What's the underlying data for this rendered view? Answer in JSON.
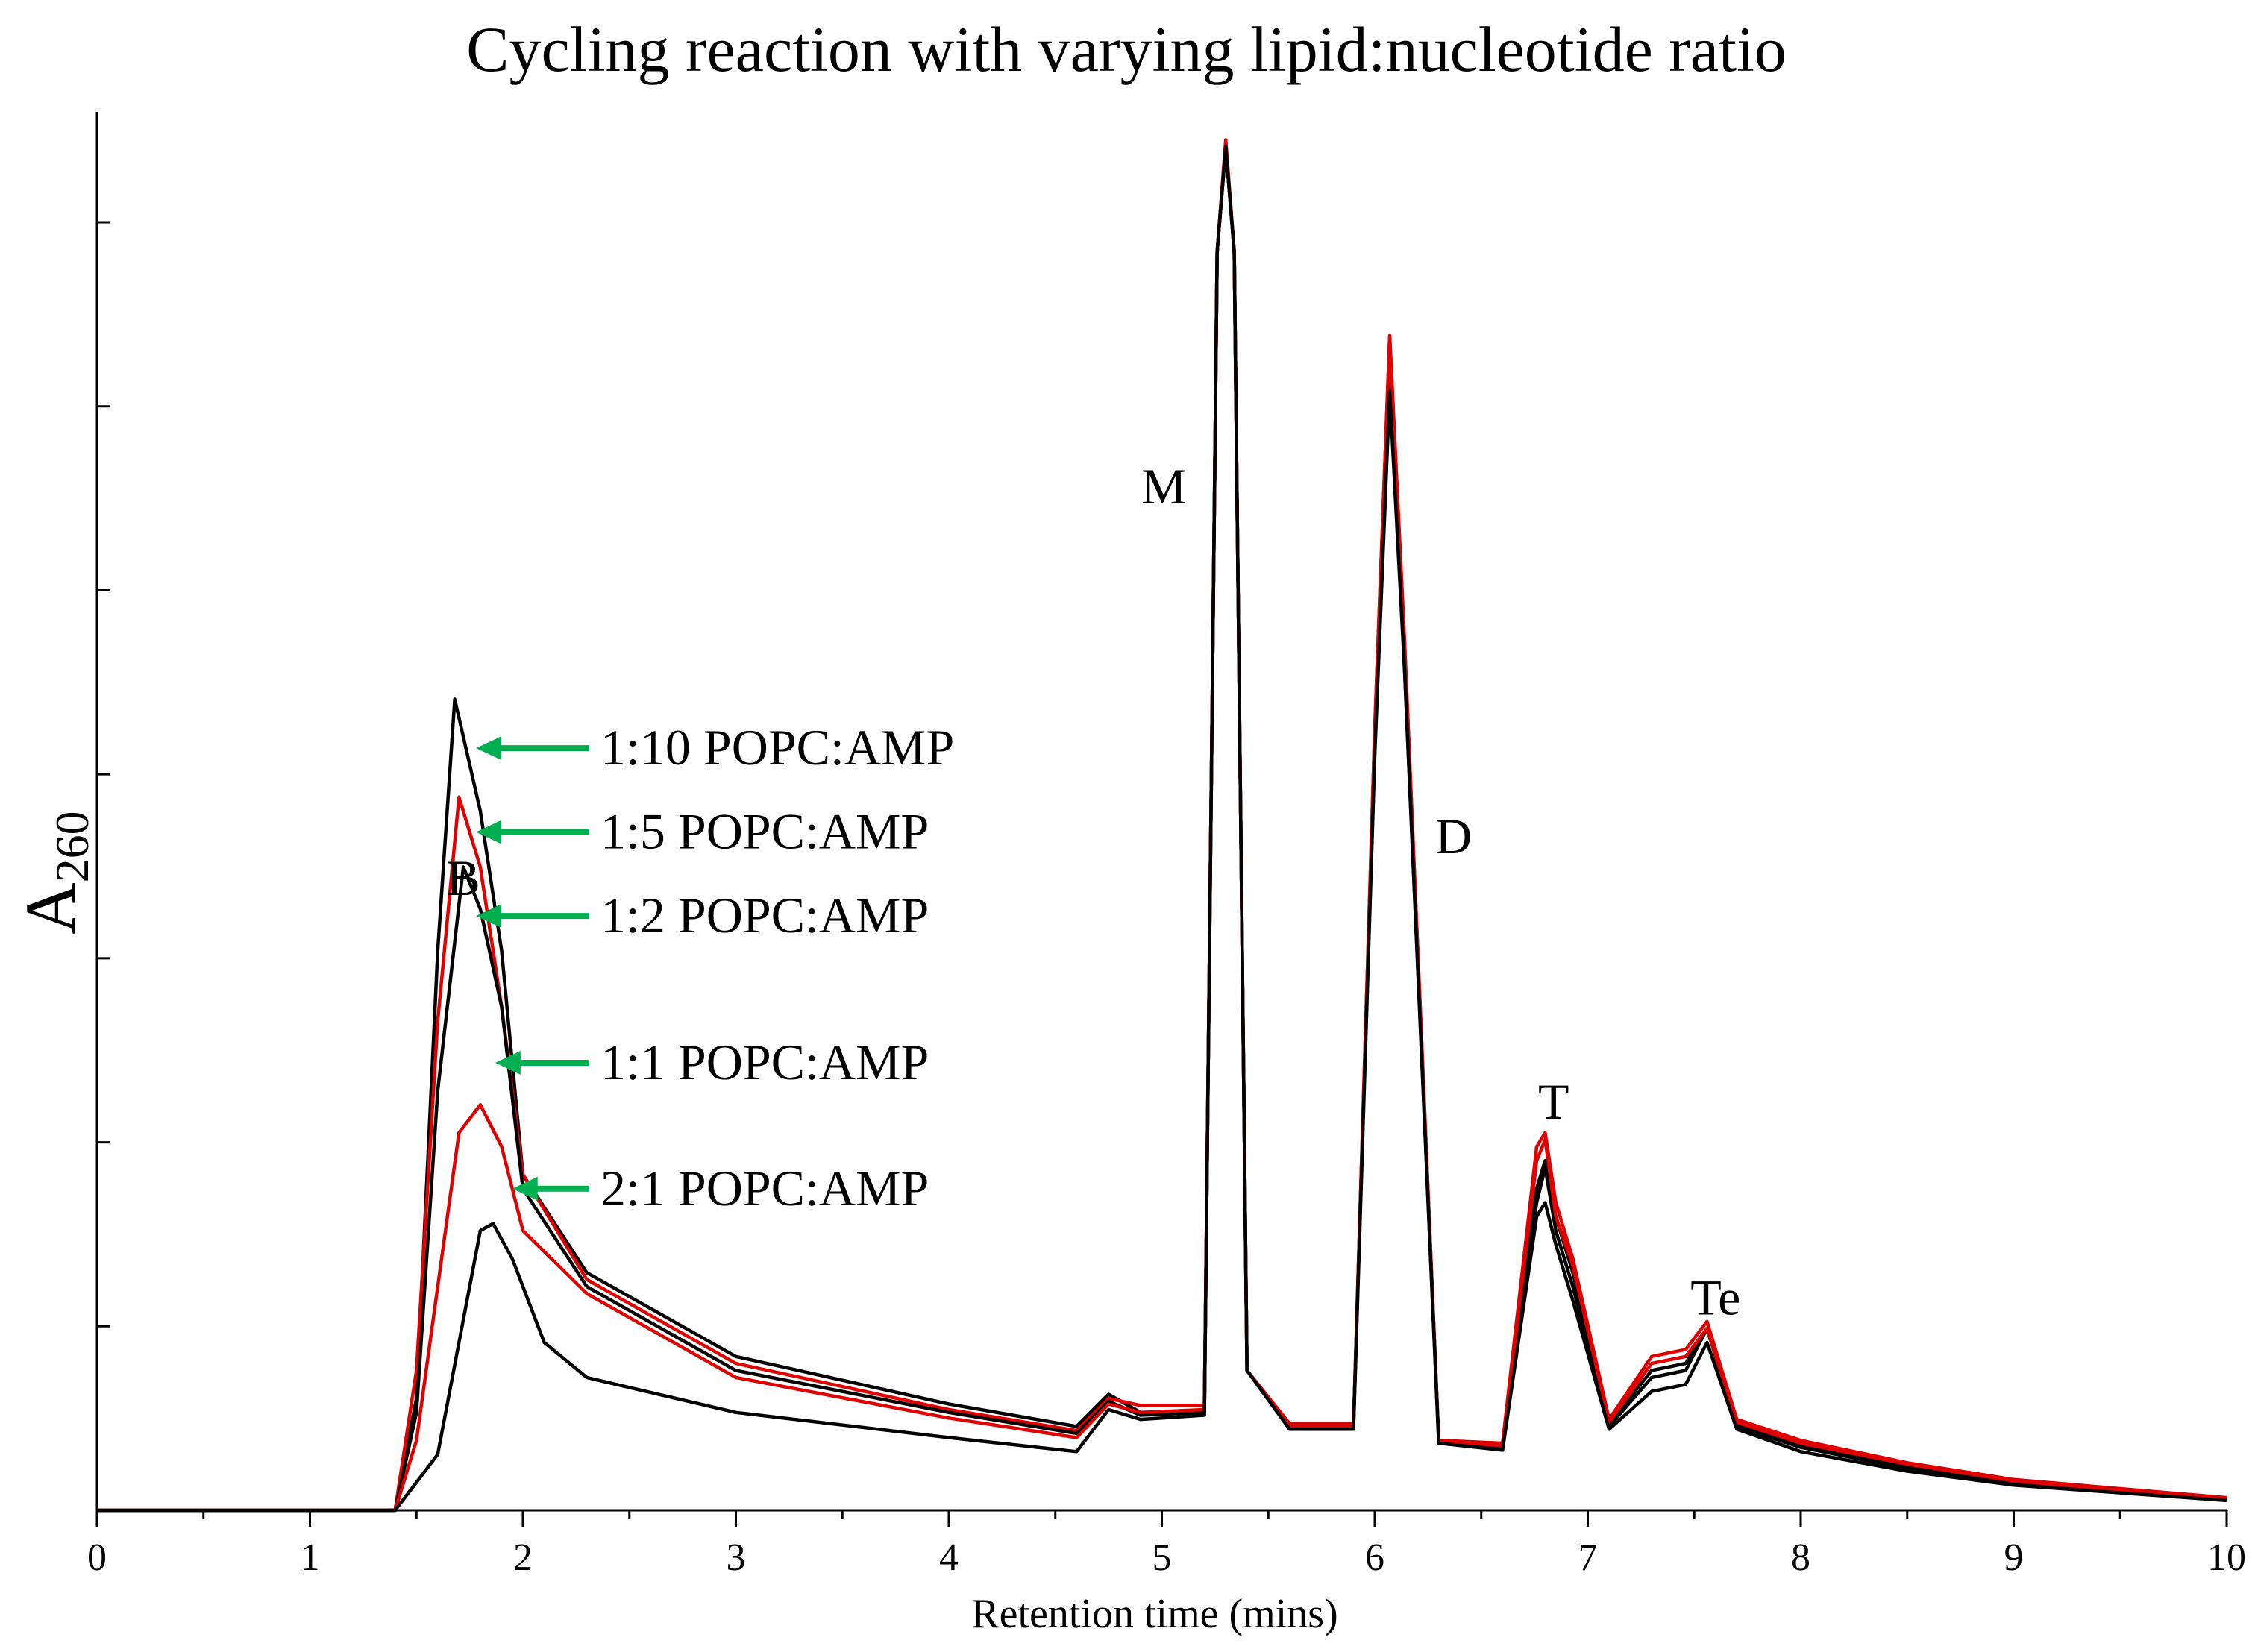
{
  "chart_data": {
    "type": "line",
    "title": "Cycling reaction with varying lipid:nucleotide ratio",
    "xlabel": "Retention time (mins)",
    "ylabel_main": "A",
    "ylabel_sub": "260",
    "xlim": [
      0,
      10
    ],
    "ylim": [
      0,
      1
    ],
    "x_ticks": [
      0,
      1,
      2,
      3,
      4,
      5,
      6,
      7,
      8,
      9,
      10
    ],
    "y_ticks_visible": false,
    "grid": false,
    "peak_labels": [
      {
        "text": "B",
        "x": 1.72,
        "y": 0.44
      },
      {
        "text": "M",
        "x": 5.01,
        "y": 0.72
      },
      {
        "text": "D",
        "x": 6.37,
        "y": 0.47
      },
      {
        "text": "T",
        "x": 6.84,
        "y": 0.28
      },
      {
        "text": "Te",
        "x": 7.6,
        "y": 0.14
      }
    ],
    "series": [
      {
        "name": "1:10 POPC:AMP",
        "color": "#000000",
        "x": [
          0,
          1.4,
          1.5,
          1.6,
          1.68,
          1.8,
          1.9,
          2.0,
          2.3,
          3.0,
          4.0,
          4.6,
          4.75,
          4.9,
          5.2,
          5.26,
          5.3,
          5.34,
          5.4,
          5.6,
          5.9,
          6.0,
          6.07,
          6.14,
          6.3,
          6.6,
          6.76,
          6.8,
          6.85,
          6.93,
          7.1,
          7.3,
          7.46,
          7.56,
          7.7,
          8.0,
          8.5,
          9.0,
          10.0
        ],
        "y": [
          0,
          0,
          0.08,
          0.4,
          0.58,
          0.5,
          0.4,
          0.24,
          0.17,
          0.11,
          0.076,
          0.06,
          0.083,
          0.07,
          0.07,
          0.9,
          0.975,
          0.9,
          0.1,
          0.06,
          0.06,
          0.55,
          0.82,
          0.6,
          0.05,
          0.045,
          0.22,
          0.245,
          0.2,
          0.16,
          0.06,
          0.095,
          0.1,
          0.13,
          0.06,
          0.045,
          0.03,
          0.02,
          0.008
        ]
      },
      {
        "name": "1:5 POPC:AMP",
        "color": "#e00000",
        "x": [
          0,
          1.4,
          1.5,
          1.6,
          1.7,
          1.8,
          1.9,
          2.0,
          2.3,
          3.0,
          4.0,
          4.6,
          4.75,
          4.9,
          5.2,
          5.26,
          5.3,
          5.34,
          5.4,
          5.6,
          5.9,
          6.0,
          6.07,
          6.14,
          6.3,
          6.6,
          6.76,
          6.8,
          6.85,
          6.93,
          7.1,
          7.3,
          7.46,
          7.56,
          7.7,
          8.0,
          8.5,
          9.0,
          10.0
        ],
        "y": [
          0,
          0,
          0.1,
          0.35,
          0.51,
          0.46,
          0.36,
          0.24,
          0.165,
          0.105,
          0.072,
          0.057,
          0.08,
          0.075,
          0.075,
          0.9,
          0.98,
          0.9,
          0.1,
          0.062,
          0.062,
          0.56,
          0.84,
          0.62,
          0.05,
          0.048,
          0.26,
          0.27,
          0.22,
          0.18,
          0.065,
          0.11,
          0.115,
          0.135,
          0.065,
          0.05,
          0.034,
          0.022,
          0.009
        ]
      },
      {
        "name": "1:2 POPC:AMP",
        "color": "#000000",
        "x": [
          0,
          1.4,
          1.5,
          1.6,
          1.72,
          1.8,
          1.9,
          2.0,
          2.3,
          3.0,
          4.0,
          4.6,
          4.75,
          4.9,
          5.2,
          5.26,
          5.3,
          5.34,
          5.4,
          5.6,
          5.9,
          6.0,
          6.07,
          6.14,
          6.3,
          6.6,
          6.76,
          6.8,
          6.85,
          6.93,
          7.1,
          7.3,
          7.46,
          7.56,
          7.7,
          8.0,
          8.5,
          9.0,
          10.0
        ],
        "y": [
          0,
          0,
          0.07,
          0.3,
          0.46,
          0.43,
          0.36,
          0.23,
          0.16,
          0.1,
          0.07,
          0.055,
          0.078,
          0.068,
          0.07,
          0.9,
          0.975,
          0.9,
          0.1,
          0.06,
          0.06,
          0.55,
          0.83,
          0.61,
          0.05,
          0.045,
          0.23,
          0.25,
          0.21,
          0.17,
          0.062,
          0.1,
          0.105,
          0.13,
          0.062,
          0.047,
          0.032,
          0.021,
          0.008
        ]
      },
      {
        "name": "1:1 POPC:AMP",
        "color": "#e00000",
        "x": [
          0,
          1.4,
          1.5,
          1.6,
          1.7,
          1.8,
          1.9,
          2.0,
          2.3,
          3.0,
          4.0,
          4.6,
          4.75,
          4.9,
          5.2,
          5.26,
          5.3,
          5.34,
          5.4,
          5.6,
          5.9,
          6.0,
          6.07,
          6.14,
          6.3,
          6.6,
          6.76,
          6.8,
          6.85,
          6.93,
          7.1,
          7.3,
          7.46,
          7.56,
          7.7,
          8.0,
          8.5,
          9.0,
          10.0
        ],
        "y": [
          0,
          0,
          0.05,
          0.16,
          0.27,
          0.29,
          0.26,
          0.2,
          0.155,
          0.095,
          0.066,
          0.052,
          0.076,
          0.07,
          0.072,
          0.9,
          0.978,
          0.9,
          0.1,
          0.06,
          0.06,
          0.56,
          0.84,
          0.62,
          0.05,
          0.046,
          0.25,
          0.265,
          0.21,
          0.175,
          0.063,
          0.105,
          0.11,
          0.13,
          0.063,
          0.048,
          0.033,
          0.021,
          0.008
        ]
      },
      {
        "name": "2:1 POPC:AMP",
        "color": "#000000",
        "x": [
          0,
          1.4,
          1.5,
          1.6,
          1.7,
          1.8,
          1.86,
          1.95,
          2.1,
          2.3,
          3.0,
          4.0,
          4.6,
          4.75,
          4.9,
          5.2,
          5.26,
          5.3,
          5.34,
          5.4,
          5.6,
          5.9,
          6.0,
          6.07,
          6.14,
          6.3,
          6.6,
          6.76,
          6.8,
          6.85,
          6.93,
          7.1,
          7.3,
          7.46,
          7.56,
          7.7,
          8.0,
          8.5,
          9.0,
          10.0
        ],
        "y": [
          0,
          0,
          0.02,
          0.04,
          0.12,
          0.2,
          0.205,
          0.18,
          0.12,
          0.095,
          0.07,
          0.052,
          0.042,
          0.072,
          0.065,
          0.068,
          0.9,
          0.975,
          0.9,
          0.1,
          0.058,
          0.058,
          0.54,
          0.8,
          0.6,
          0.048,
          0.043,
          0.21,
          0.22,
          0.19,
          0.15,
          0.058,
          0.085,
          0.09,
          0.12,
          0.058,
          0.042,
          0.028,
          0.018,
          0.007
        ]
      }
    ],
    "annotations": [
      {
        "text": "1:10 POPC:AMP",
        "arrow_to_x": 1.78,
        "arrow_to_y": 0.545,
        "arrow_color": "#00b050"
      },
      {
        "text": "1:5 POPC:AMP",
        "arrow_to_x": 1.78,
        "arrow_to_y": 0.485,
        "arrow_color": "#00b050"
      },
      {
        "text": "1:2 POPC:AMP",
        "arrow_to_x": 1.78,
        "arrow_to_y": 0.425,
        "arrow_color": "#00b050"
      },
      {
        "text": "1:1 POPC:AMP",
        "arrow_to_x": 1.87,
        "arrow_to_y": 0.32,
        "arrow_color": "#00b050"
      },
      {
        "text": "2:1 POPC:AMP",
        "arrow_to_x": 1.95,
        "arrow_to_y": 0.23,
        "arrow_color": "#00b050"
      }
    ]
  }
}
